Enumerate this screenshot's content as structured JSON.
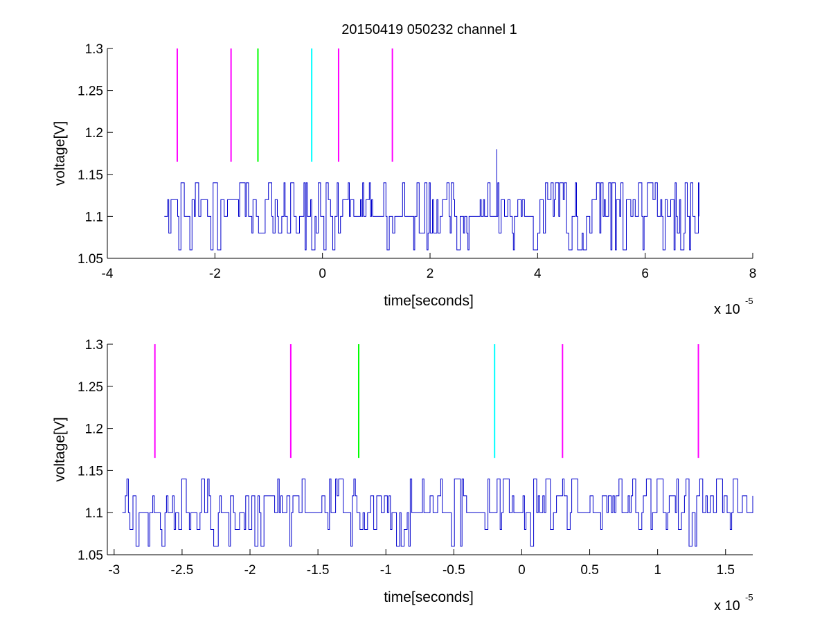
{
  "figure": {
    "title": "20150419 050232 channel 1"
  },
  "chart_data": [
    {
      "type": "line",
      "title": "20150419 050232 channel 1",
      "xlabel": "time[seconds]",
      "ylabel": "voltage[V]",
      "xlim": [
        -4e-05,
        8e-05
      ],
      "ylim": [
        1.05,
        1.3
      ],
      "x_ticks": [
        "-4",
        "-2",
        "0",
        "2",
        "4",
        "6",
        "8"
      ],
      "x_tick_values": [
        -4e-05,
        -2e-05,
        0,
        2e-05,
        4e-05,
        6e-05,
        8e-05
      ],
      "y_ticks": [
        "1.05",
        "1.1",
        "1.15",
        "1.2",
        "1.25",
        "1.3"
      ],
      "y_tick_values": [
        1.05,
        1.1,
        1.15,
        1.2,
        1.25,
        1.3
      ],
      "x_exponent_base": "x 10",
      "x_exponent_power": "-5",
      "grid": false,
      "series": [
        {
          "color": "#0000cc",
          "x_start": -2.94e-05,
          "x_end": 7e-05,
          "levels": [
            1.06,
            1.08,
            1.1,
            1.12,
            1.14
          ],
          "spike": {
            "x": 3.22e-05,
            "y": 1.18
          },
          "end_value": 1.1
        }
      ],
      "markers": [
        {
          "x": -2.7e-05,
          "y_from": 1.165,
          "y_to": 1.3,
          "color": "#ff00ff"
        },
        {
          "x": -1.7e-05,
          "y_from": 1.165,
          "y_to": 1.3,
          "color": "#ff00ff"
        },
        {
          "x": -1.2e-05,
          "y_from": 1.165,
          "y_to": 1.3,
          "color": "#00ff00"
        },
        {
          "x": -2e-06,
          "y_from": 1.165,
          "y_to": 1.3,
          "color": "#00ffff"
        },
        {
          "x": 3e-06,
          "y_from": 1.165,
          "y_to": 1.3,
          "color": "#ff00ff"
        },
        {
          "x": 1.3e-05,
          "y_from": 1.165,
          "y_to": 1.3,
          "color": "#ff00ff"
        }
      ]
    },
    {
      "type": "line",
      "title": "",
      "xlabel": "time[seconds]",
      "ylabel": "voltage[V]",
      "xlim": [
        -3.05e-05,
        1.7e-05
      ],
      "ylim": [
        1.05,
        1.3
      ],
      "x_ticks": [
        "-3",
        "-2.5",
        "-2",
        "-1.5",
        "-1",
        "-0.5",
        "0",
        "0.5",
        "1",
        "1.5"
      ],
      "x_tick_values": [
        -3e-05,
        -2.5e-05,
        -2e-05,
        -1.5e-05,
        -1e-05,
        -5e-06,
        0,
        5e-06,
        1e-05,
        1.5e-05
      ],
      "y_ticks": [
        "1.05",
        "1.1",
        "1.15",
        "1.2",
        "1.25",
        "1.3"
      ],
      "y_tick_values": [
        1.05,
        1.1,
        1.15,
        1.2,
        1.25,
        1.3
      ],
      "x_exponent_base": "x 10",
      "x_exponent_power": "-5",
      "grid": false,
      "series": [
        {
          "color": "#0000cc",
          "x_start": -2.94e-05,
          "x_end": 1.7e-05,
          "levels": [
            1.06,
            1.08,
            1.1,
            1.12,
            1.14
          ],
          "end_value": 1.1
        }
      ],
      "markers": [
        {
          "x": -2.7e-05,
          "y_from": 1.165,
          "y_to": 1.3,
          "color": "#ff00ff"
        },
        {
          "x": -1.7e-05,
          "y_from": 1.165,
          "y_to": 1.3,
          "color": "#ff00ff"
        },
        {
          "x": -1.2e-05,
          "y_from": 1.165,
          "y_to": 1.3,
          "color": "#00ff00"
        },
        {
          "x": -2e-06,
          "y_from": 1.165,
          "y_to": 1.3,
          "color": "#00ffff"
        },
        {
          "x": 3e-06,
          "y_from": 1.165,
          "y_to": 1.3,
          "color": "#ff00ff"
        },
        {
          "x": 1.3e-05,
          "y_from": 1.165,
          "y_to": 1.3,
          "color": "#ff00ff"
        }
      ]
    }
  ]
}
